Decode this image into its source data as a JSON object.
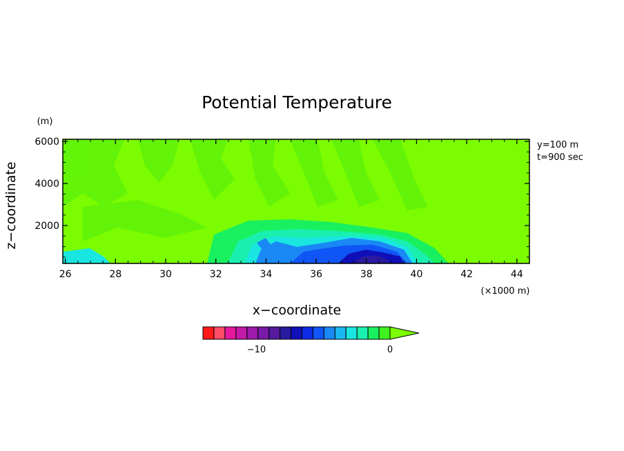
{
  "chart_data": {
    "type": "heatmap",
    "title": "Potential Temperature",
    "xlabel": "x−coordinate",
    "ylabel": "z−coordinate",
    "x_unit": "(×1000 m)",
    "y_unit": "(m)",
    "annotations": [
      "y=100 m",
      "t=900 sec"
    ],
    "xlim": [
      25.9,
      44.5
    ],
    "ylim": [
      200,
      6100
    ],
    "x_ticks": [
      26,
      28,
      30,
      32,
      34,
      36,
      38,
      40,
      42,
      44
    ],
    "x_tick_labels": [
      "26",
      "28",
      "30",
      "32",
      "34",
      "36",
      "38",
      "40",
      "42",
      "44"
    ],
    "y_ticks": [
      2000,
      4000,
      6000
    ],
    "y_tick_labels": [
      "2000",
      "4000",
      "6000"
    ],
    "grid": false,
    "colorbar": {
      "levels": [
        -14,
        -13,
        -12,
        -11,
        -10,
        -9,
        -8,
        -7,
        -6,
        -5,
        -4,
        -3,
        -2,
        -1,
        0
      ],
      "tick_values": [
        -10,
        0
      ],
      "tick_labels": [
        "−10",
        "0"
      ],
      "extend": "max",
      "colors": [
        "#ff1a1a",
        "#ff4d66",
        "#e6199e",
        "#c21aa8",
        "#9e1aaa",
        "#7a1aa8",
        "#551a9e",
        "#2a1aa0",
        "#1010b8",
        "#0f2ae6",
        "#1055f5",
        "#1a88f5",
        "#19b8f0",
        "#19e6e0",
        "#19f0b0",
        "#19f060",
        "#40f020",
        "#7cfc00"
      ]
    },
    "field": {
      "description": "anomaly by region (data units: x in km, z in m)",
      "background": 0,
      "regions": [
        {
          "x": [
            26.0,
            44.5
          ],
          "z": [
            200,
            6100
          ],
          "value": 0
        },
        {
          "x": [
            26.0,
            33.5
          ],
          "z": [
            200,
            6100
          ],
          "value": -0.5
        },
        {
          "x": [
            33.0,
            40.5
          ],
          "z": [
            200,
            2000
          ],
          "value": -1
        },
        {
          "x": [
            33.5,
            40.0
          ],
          "z": [
            200,
            1500
          ],
          "value": -2
        },
        {
          "x": [
            34.0,
            39.5
          ],
          "z": [
            200,
            1200
          ],
          "value": -4
        },
        {
          "x": [
            36.5,
            39.0
          ],
          "z": [
            200,
            800
          ],
          "value": -7
        },
        {
          "x": [
            37.5,
            38.5
          ],
          "z": [
            200,
            400
          ],
          "value": -9
        }
      ]
    }
  }
}
